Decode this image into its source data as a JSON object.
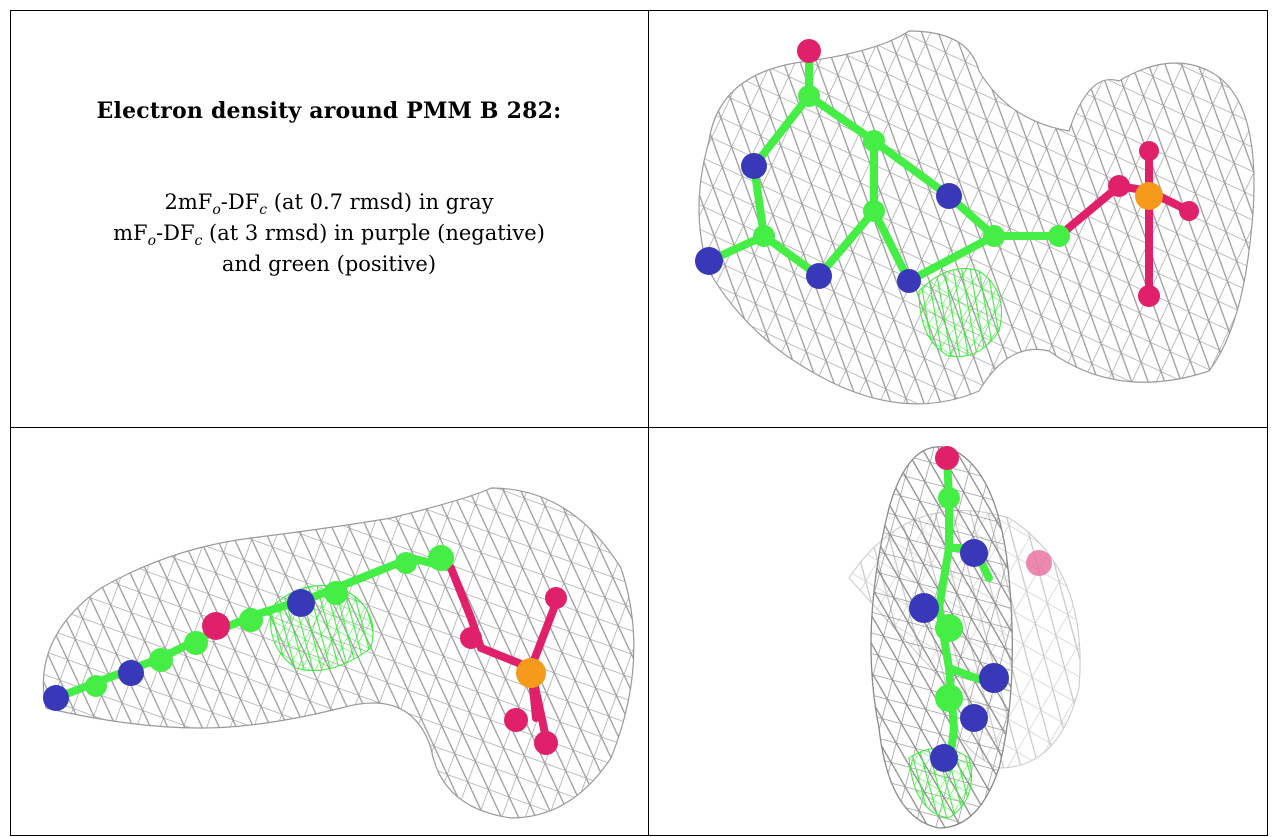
{
  "caption": {
    "title": "Electron density around PMM B 282:",
    "line1_a": "2mF",
    "line1_sub1": "o",
    "line1_b": "-DF",
    "line1_sub2": "c",
    "line1_c": " (at 0.7 rmsd) in gray",
    "line2_a": "mF",
    "line2_sub1": "o",
    "line2_b": "-DF",
    "line2_sub2": "c",
    "line2_c": " (at 3 rmsd) in purple (negative)",
    "line3": "and green (positive)"
  },
  "colors": {
    "mesh_gray": "#9a9a9a",
    "mesh_green": "#33ee33",
    "carbon_green": "#44ee44",
    "nitrogen_blue": "#3838b8",
    "oxygen_pink": "#e0206a",
    "phosphorus_orange": "#f59a1a",
    "border": "#000000"
  },
  "panels": [
    {
      "view": "top-right"
    },
    {
      "view": "bottom-left"
    },
    {
      "view": "bottom-right"
    }
  ]
}
